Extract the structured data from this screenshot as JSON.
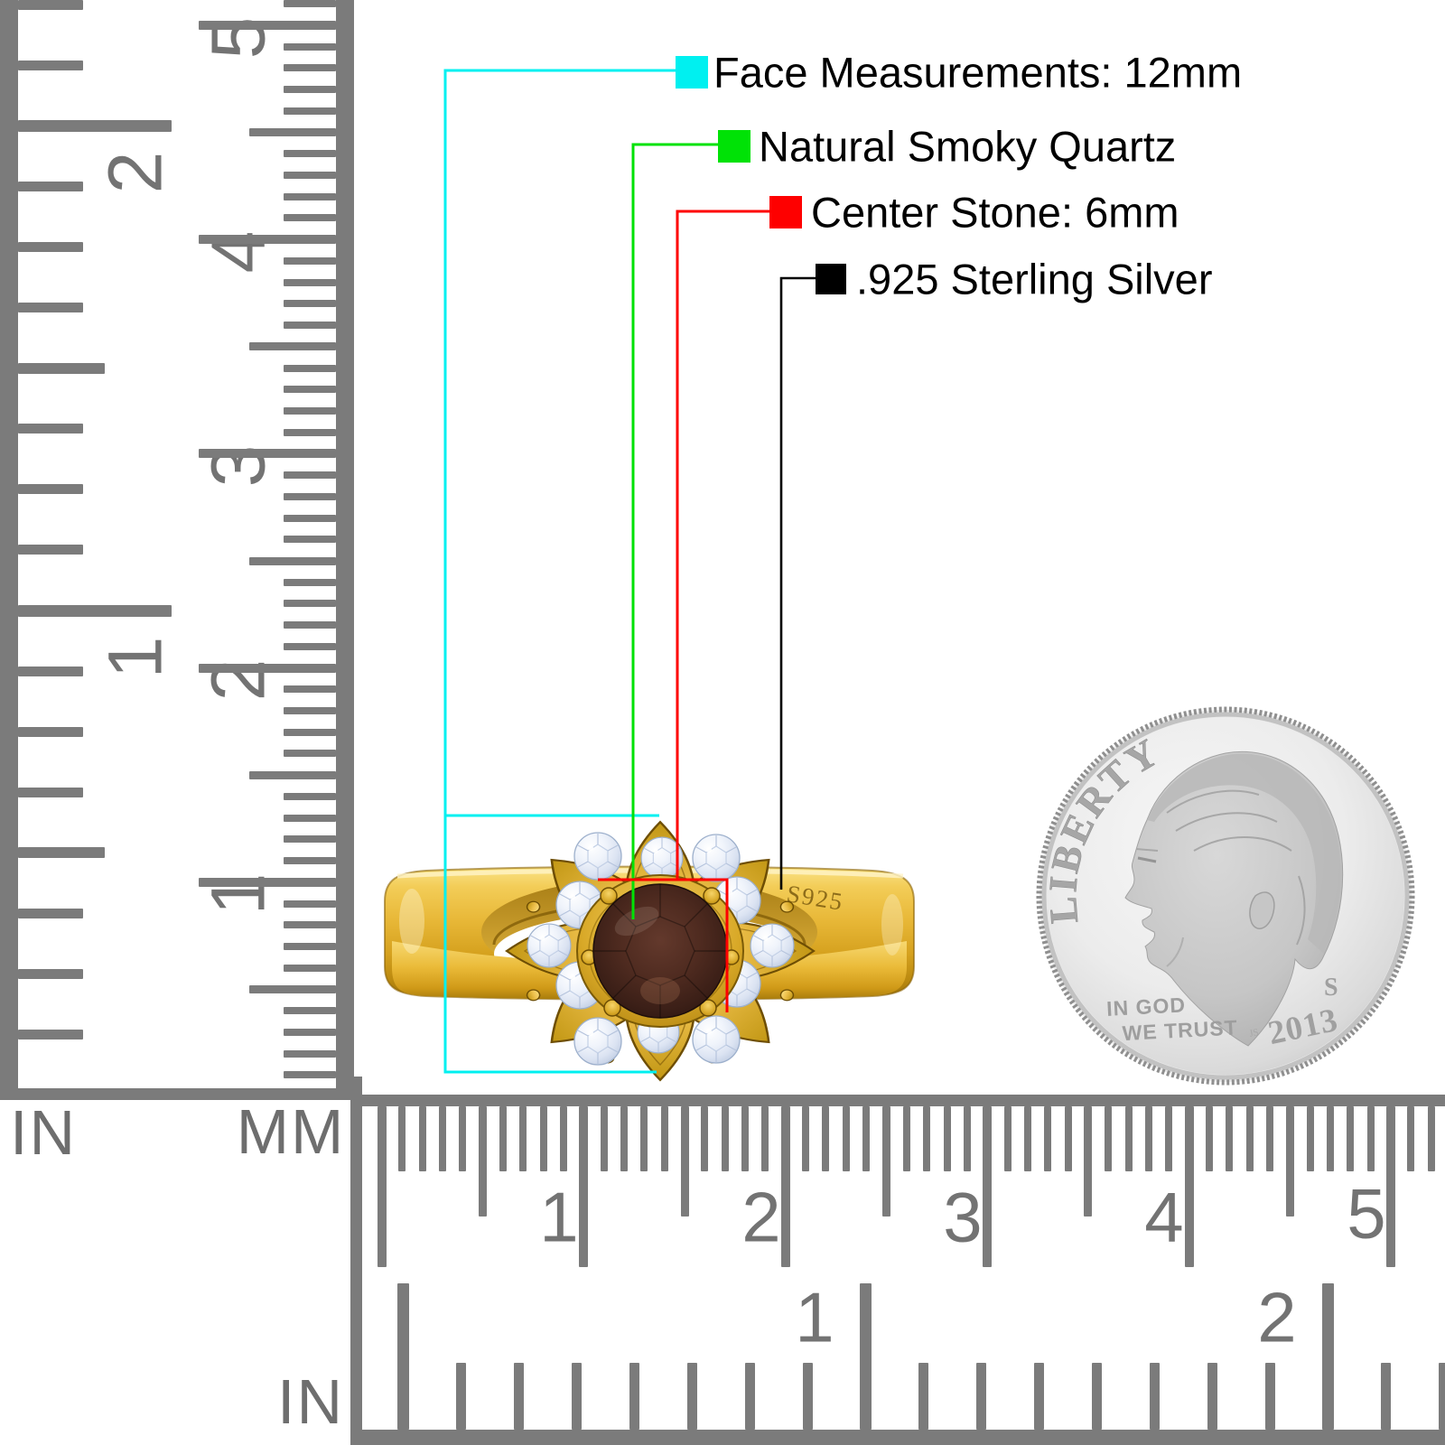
{
  "legend": {
    "items": [
      {
        "label": "Face Measurements: 12mm",
        "color": "#00f0f0"
      },
      {
        "label": "Natural Smoky Quartz",
        "color": "#00e206"
      },
      {
        "label": "Center Stone: 6mm",
        "color": "#fe0000"
      },
      {
        "label": ".925 Sterling Silver",
        "color": "#000000"
      }
    ]
  },
  "ring": {
    "engraving": "S925"
  },
  "coin": {
    "legend_text": "LIBERTY",
    "motto_line1": "IN GOD",
    "motto_line2": "WE TRUST",
    "mint_mark": "S",
    "year": "2013"
  },
  "rulers": {
    "vertical_inch": {
      "unit_label": "IN",
      "numbers": [
        "2",
        "1"
      ]
    },
    "vertical_mm": {
      "unit_label": "MM",
      "numbers": [
        "5",
        "4",
        "3",
        "2",
        "1"
      ]
    },
    "horizontal_mm": {
      "numbers": [
        "1",
        "2",
        "3",
        "4",
        "5"
      ]
    },
    "horizontal_inch": {
      "unit_label": "IN",
      "numbers": [
        "1",
        "2"
      ]
    }
  },
  "colors": {
    "ruler_gray": "#7b7b7b",
    "gold": "#e2b13c",
    "stone_brown": "#45261d",
    "cz_white": "#eef3fb",
    "coin_silver": "#d9d9d9"
  }
}
